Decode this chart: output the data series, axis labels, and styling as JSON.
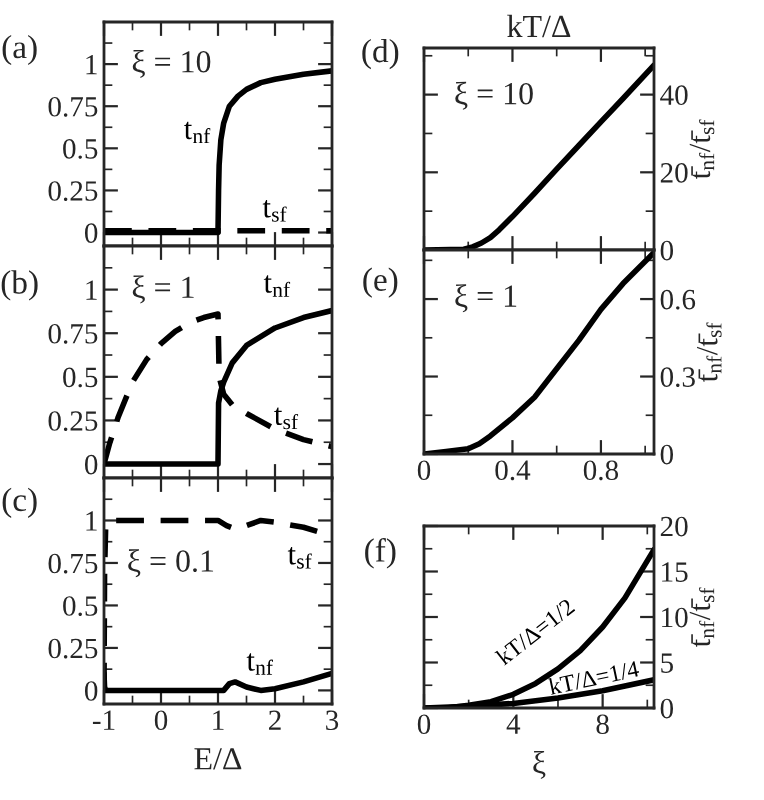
{
  "chart_data": [
    {
      "type": "line",
      "title": "(a)",
      "subtitle": "ξ = 10",
      "xlim": [
        -1,
        3
      ],
      "ylim": [
        -0.08,
        1.25
      ],
      "tick_labels": "y",
      "xticks": [
        -1,
        {
          "value": -0.5,
          "label": null
        },
        0,
        {
          "value": 0.5,
          "label": null
        },
        1,
        {
          "value": 1.5,
          "label": null
        },
        2,
        {
          "value": 2.5,
          "label": null
        },
        3
      ],
      "yticks": [
        0,
        {
          "value": 0.125,
          "label": null
        },
        0.25,
        {
          "value": 0.375,
          "label": null
        },
        0.5,
        {
          "value": 0.625,
          "label": null
        },
        0.75,
        {
          "value": 0.875,
          "label": null
        },
        1,
        {
          "value": 1.125,
          "label": null
        }
      ],
      "series": [
        {
          "name": "t$_{nf}$",
          "color": "#000000",
          "line_style": "solid",
          "x": [
            -1,
            1.0,
            1.01,
            1.02,
            1.05,
            1.1,
            1.2,
            1.35,
            1.5,
            1.75,
            2,
            2.5,
            3
          ],
          "values": [
            0,
            0,
            0.25,
            0.4,
            0.55,
            0.65,
            0.75,
            0.81,
            0.85,
            0.89,
            0.91,
            0.94,
            0.96
          ]
        },
        {
          "name": "t$_{sf}$",
          "color": "#000000",
          "line_style": "dashed",
          "x": [
            -1,
            1,
            3
          ],
          "values": [
            0.01,
            0.01,
            0.01
          ]
        }
      ]
    },
    {
      "type": "line",
      "title": "(b)",
      "subtitle": "ξ = 1",
      "xlim": [
        -1,
        3
      ],
      "ylim": [
        -0.08,
        1.25
      ],
      "tick_labels": "y",
      "xticks": [
        -1,
        {
          "value": -0.5,
          "label": null
        },
        0,
        {
          "value": 0.5,
          "label": null
        },
        1,
        {
          "value": 1.5,
          "label": null
        },
        2,
        {
          "value": 2.5,
          "label": null
        },
        3
      ],
      "yticks": [
        0,
        {
          "value": 0.125,
          "label": null
        },
        0.25,
        {
          "value": 0.375,
          "label": null
        },
        0.5,
        {
          "value": 0.625,
          "label": null
        },
        0.75,
        {
          "value": 0.875,
          "label": null
        },
        1,
        {
          "value": 1.125,
          "label": null
        }
      ],
      "series": [
        {
          "name": "t$_{nf}$",
          "color": "#000000",
          "line_style": "solid",
          "x": [
            -1,
            1.0,
            1.01,
            1.05,
            1.1,
            1.25,
            1.5,
            2,
            2.5,
            3
          ],
          "values": [
            0,
            0,
            0.35,
            0.42,
            0.47,
            0.58,
            0.68,
            0.78,
            0.84,
            0.88
          ]
        },
        {
          "name": "t$_{sf}$",
          "color": "#000000",
          "line_style": "dashed",
          "x": [
            -1,
            -0.9,
            -0.75,
            -0.5,
            -0.25,
            0,
            0.25,
            0.5,
            0.75,
            1.0,
            1.02,
            1.1,
            1.25,
            1.5,
            2,
            2.5,
            3
          ],
          "values": [
            0,
            0.12,
            0.27,
            0.47,
            0.6,
            0.69,
            0.76,
            0.81,
            0.84,
            0.86,
            0.5,
            0.4,
            0.34,
            0.29,
            0.2,
            0.14,
            0.1
          ]
        }
      ]
    },
    {
      "type": "line",
      "title": "(c)",
      "subtitle": "ξ = 0.1",
      "xlabel": "E/Δ",
      "xlim": [
        -1,
        3
      ],
      "ylim": [
        -0.08,
        1.25
      ],
      "xticks": [
        -1,
        {
          "value": -0.5,
          "label": null
        },
        0,
        {
          "value": 0.5,
          "label": null
        },
        1,
        {
          "value": 1.5,
          "label": null
        },
        2,
        {
          "value": 2.5,
          "label": null
        },
        3
      ],
      "yticks": [
        0,
        {
          "value": 0.125,
          "label": null
        },
        0.25,
        {
          "value": 0.375,
          "label": null
        },
        0.5,
        {
          "value": 0.625,
          "label": null
        },
        0.75,
        {
          "value": 0.875,
          "label": null
        },
        1,
        {
          "value": 1.125,
          "label": null
        }
      ],
      "series": [
        {
          "name": "t$_{sf}$",
          "color": "#000000",
          "line_style": "dashed",
          "x": [
            -1,
            -0.99,
            -0.97,
            -0.9,
            1.0,
            1.15,
            1.3,
            1.5,
            1.75,
            2,
            2.5,
            3
          ],
          "values": [
            0,
            0.7,
            0.97,
            1.0,
            1.0,
            0.97,
            0.95,
            0.97,
            1.0,
            0.99,
            0.96,
            0.91
          ]
        },
        {
          "name": "t$_{nf}$",
          "color": "#000000",
          "line_style": "solid",
          "x": [
            -1,
            -0.99,
            -0.97,
            1.1,
            1.2,
            1.3,
            1.5,
            1.75,
            2,
            2.5,
            3
          ],
          "values": [
            0.1,
            0.02,
            0,
            0,
            0.04,
            0.05,
            0.02,
            0,
            0.01,
            0.05,
            0.1
          ]
        }
      ]
    },
    {
      "type": "line",
      "title": "(d)",
      "subtitle": "ξ = 10",
      "xlabel": "kT/Δ",
      "ylabel": "t̄$_{nf}$/t̄$_{sf}$",
      "xlim": [
        0,
        1.04
      ],
      "ylim": [
        0,
        52
      ],
      "tick_labels": "y",
      "xticks": [
        0,
        {
          "value": 0.2,
          "label": null
        },
        0.4,
        {
          "value": 0.6,
          "label": null
        },
        0.8,
        {
          "value": 1.0,
          "label": null
        }
      ],
      "yticks": [
        0,
        {
          "value": 10,
          "label": null
        },
        20,
        {
          "value": 30,
          "label": null
        },
        40,
        {
          "value": 50,
          "label": null
        }
      ],
      "series": [
        {
          "color": "#000000",
          "line_style": "solid",
          "x": [
            0,
            0.18,
            0.22,
            0.26,
            0.3,
            0.34,
            0.4,
            0.5,
            0.6,
            0.7,
            0.8,
            0.9,
            1.04
          ],
          "values": [
            0,
            0.2,
            0.8,
            1.8,
            3.2,
            5.2,
            8.6,
            14.6,
            20.8,
            26.9,
            33,
            39,
            47.6
          ]
        }
      ]
    },
    {
      "type": "line",
      "title": "(e)",
      "subtitle": "ξ = 1",
      "ylabel": "t̄$_{nf}$/t̄$_{sf}$",
      "xlim": [
        0,
        1.04
      ],
      "ylim": [
        0,
        0.79
      ],
      "xticks": [
        0,
        {
          "value": 0.2,
          "label": null
        },
        0.4,
        {
          "value": 0.6,
          "label": null
        },
        0.8,
        {
          "value": 1.0,
          "label": null
        }
      ],
      "yticks": [
        0,
        {
          "value": 0.15,
          "label": null
        },
        0.3,
        {
          "value": 0.45,
          "label": null
        },
        0.6,
        {
          "value": 0.75,
          "label": null
        }
      ],
      "series": [
        {
          "color": "#000000",
          "line_style": "solid",
          "x": [
            0,
            0.1,
            0.2,
            0.25,
            0.3,
            0.4,
            0.5,
            0.6,
            0.7,
            0.8,
            0.9,
            1.04
          ],
          "values": [
            0,
            0.01,
            0.02,
            0.04,
            0.07,
            0.14,
            0.22,
            0.33,
            0.44,
            0.56,
            0.66,
            0.78
          ]
        }
      ]
    },
    {
      "type": "line",
      "title": "(f)",
      "xlabel": "ξ",
      "ylabel": "t̄$_{nf}$/t̄$_{sf}$",
      "xlim": [
        0,
        10.3
      ],
      "ylim": [
        0,
        20
      ],
      "xticks": [
        0,
        {
          "value": 2,
          "label": null
        },
        4,
        {
          "value": 6,
          "label": null
        },
        8,
        {
          "value": 10,
          "label": null
        }
      ],
      "yticks": [
        0,
        {
          "value": 2.5,
          "label": null
        },
        5,
        {
          "value": 7.5,
          "label": null
        },
        10,
        {
          "value": 12.5,
          "label": null
        },
        15,
        {
          "value": 17.5,
          "label": null
        },
        20
      ],
      "series": [
        {
          "name": "kT/Δ=1/2",
          "color": "#000000",
          "line_style": "solid",
          "x": [
            0,
            1,
            2,
            3,
            4,
            5,
            6,
            7,
            8,
            9,
            10.3
          ],
          "values": [
            0,
            0,
            0.3,
            0.7,
            1.5,
            2.7,
            4.3,
            6.3,
            8.9,
            12.1,
            17.4
          ]
        },
        {
          "name": "kT/Δ=1/4",
          "color": "#000000",
          "line_style": "solid",
          "x": [
            0,
            2,
            4,
            6,
            8,
            10.3
          ],
          "values": [
            0,
            0.2,
            0.5,
            1.1,
            1.9,
            3.1
          ]
        }
      ]
    }
  ]
}
